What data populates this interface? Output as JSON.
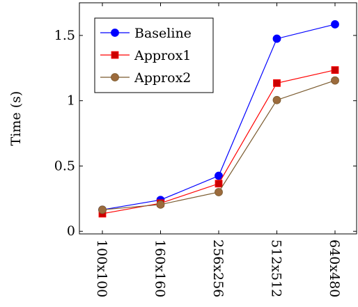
{
  "chart_data": {
    "type": "line",
    "ylabel": "Time (s)",
    "xlabel": "",
    "categories": [
      "100x100",
      "160x160",
      "256x256",
      "512x512",
      "640x480"
    ],
    "ylim": [
      -0.02,
      1.75
    ],
    "yticks": [
      0,
      0.5,
      1,
      1.5
    ],
    "ytick_labels": [
      "0",
      "0.5",
      "1",
      "1.5"
    ],
    "grid": false,
    "legend_position": "top-left",
    "series": [
      {
        "name": "Baseline",
        "color": "#0000ff",
        "marker": "circle",
        "marker_fill": "#0000ff",
        "values": [
          0.165,
          0.24,
          0.425,
          1.475,
          1.585
        ]
      },
      {
        "name": "Approx1",
        "color": "#ff0000",
        "marker": "square",
        "marker_fill": "#cc0000",
        "values": [
          0.135,
          0.215,
          0.365,
          1.135,
          1.235
        ]
      },
      {
        "name": "Approx2",
        "color": "#7a5a2e",
        "marker": "circle",
        "marker_fill": "#9c6b3c",
        "values": [
          0.165,
          0.205,
          0.3,
          1.005,
          1.155
        ]
      }
    ]
  }
}
